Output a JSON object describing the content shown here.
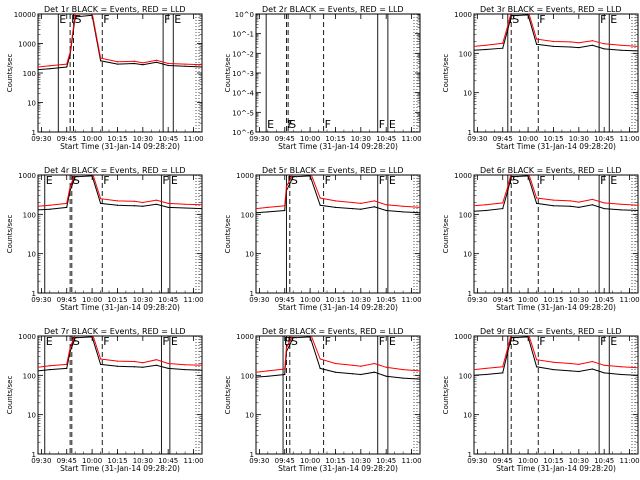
{
  "figure": {
    "xlabel": "Start Time (31-Jan-14 09:28:20)",
    "ylabel": "Counts/sec",
    "x_ticks": [
      "09:30",
      "09:45",
      "10:00",
      "10:15",
      "10:30",
      "10:45",
      "11:00"
    ],
    "y_ticks_main": [
      "1",
      "10",
      "100",
      "1000"
    ],
    "y_ticks_det1": [
      "1",
      "10",
      "100",
      "1000",
      "10000"
    ],
    "y_ticks_det2": [
      "10^-6",
      "10^-5",
      "10^-4",
      "10^-3",
      "10^-2",
      "10^-1",
      "10^0"
    ],
    "colors": {
      "events": "#000000",
      "lld": "#ff0000",
      "background": "#ffffff"
    }
  },
  "chart_data": [
    {
      "type": "line",
      "panel": 1,
      "title": "Det 1r BLACK = Events, RED = LLD",
      "yscale": "log",
      "ylim": [
        1,
        10000
      ],
      "markers": [
        {
          "label": "E",
          "time": "09:40"
        },
        {
          "label": "F",
          "time": "09:47"
        },
        {
          "label": "S",
          "time": "09:49"
        },
        {
          "label": "F",
          "time": "10:06"
        },
        {
          "label": "F",
          "time": "10:42"
        },
        {
          "label": "E",
          "time": "10:48"
        }
      ],
      "series": [
        {
          "name": "Events",
          "x": [
            "09:28",
            "09:35",
            "09:45",
            "09:47",
            "09:50",
            "10:00",
            "10:05",
            "10:15",
            "10:25",
            "10:30",
            "10:38",
            "10:45",
            "10:55",
            "11:05"
          ],
          "y": [
            130,
            140,
            160,
            400,
            8000,
            9000,
            260,
            200,
            210,
            190,
            230,
            180,
            170,
            160
          ]
        },
        {
          "name": "LLD",
          "x": [
            "09:28",
            "09:35",
            "09:45",
            "09:47",
            "09:50",
            "10:00",
            "10:05",
            "10:15",
            "10:25",
            "10:30",
            "10:38",
            "10:45",
            "10:55",
            "11:05"
          ],
          "y": [
            160,
            175,
            200,
            500,
            10000,
            11000,
            320,
            240,
            250,
            220,
            270,
            210,
            200,
            190
          ]
        }
      ]
    },
    {
      "type": "line",
      "panel": 2,
      "title": "Det 2r BLACK = Events, RED = LLD",
      "yscale": "log",
      "ylim": [
        1e-06,
        1
      ],
      "markers": [
        {
          "label": "E",
          "time": "09:34"
        },
        {
          "label": "F",
          "time": "09:46"
        },
        {
          "label": "S",
          "time": "09:47"
        },
        {
          "label": "F",
          "time": "10:08"
        },
        {
          "label": "F",
          "time": "10:40"
        },
        {
          "label": "E",
          "time": "10:46"
        }
      ],
      "series": []
    },
    {
      "type": "line",
      "panel": 3,
      "title": "Det 3r BLACK = Events, RED = LLD",
      "yscale": "log",
      "ylim": [
        1,
        1000
      ],
      "markers": [
        {
          "label": "F",
          "time": "09:48"
        },
        {
          "label": "S",
          "time": "09:50"
        },
        {
          "label": "F",
          "time": "10:06"
        },
        {
          "label": "F",
          "time": "10:42"
        },
        {
          "label": "E",
          "time": "10:48"
        }
      ],
      "series": [
        {
          "name": "Events",
          "x": [
            "09:28",
            "09:35",
            "09:45",
            "09:48",
            "09:50",
            "10:00",
            "10:05",
            "10:15",
            "10:25",
            "10:30",
            "10:38",
            "10:45",
            "10:55",
            "11:05"
          ],
          "y": [
            120,
            125,
            135,
            400,
            900,
            950,
            170,
            150,
            145,
            140,
            160,
            130,
            120,
            115
          ]
        },
        {
          "name": "LLD",
          "x": [
            "09:28",
            "09:35",
            "09:45",
            "09:48",
            "09:50",
            "10:00",
            "10:05",
            "10:15",
            "10:25",
            "10:30",
            "10:38",
            "10:45",
            "10:55",
            "11:05"
          ],
          "y": [
            150,
            160,
            180,
            500,
            1100,
            1200,
            230,
            200,
            195,
            185,
            210,
            175,
            160,
            150
          ]
        }
      ]
    },
    {
      "type": "line",
      "panel": 4,
      "title": "Det 4r BLACK = Events, RED = LLD",
      "yscale": "log",
      "ylim": [
        1,
        1000
      ],
      "markers": [
        {
          "label": "E",
          "time": "09:32"
        },
        {
          "label": "F",
          "time": "09:47"
        },
        {
          "label": "S",
          "time": "09:48"
        },
        {
          "label": "F",
          "time": "10:06"
        },
        {
          "label": "F",
          "time": "10:41"
        },
        {
          "label": "E",
          "time": "10:46"
        }
      ],
      "series": [
        {
          "name": "Events",
          "x": [
            "09:28",
            "09:35",
            "09:45",
            "09:47",
            "09:50",
            "10:00",
            "10:05",
            "10:15",
            "10:25",
            "10:30",
            "10:38",
            "10:45",
            "10:55",
            "11:05"
          ],
          "y": [
            130,
            135,
            150,
            400,
            900,
            950,
            190,
            170,
            165,
            160,
            180,
            150,
            145,
            140
          ]
        },
        {
          "name": "LLD",
          "x": [
            "09:28",
            "09:35",
            "09:45",
            "09:47",
            "09:50",
            "10:00",
            "10:05",
            "10:15",
            "10:25",
            "10:30",
            "10:38",
            "10:45",
            "10:55",
            "11:05"
          ],
          "y": [
            160,
            170,
            190,
            500,
            1100,
            1200,
            250,
            220,
            215,
            200,
            230,
            190,
            180,
            175
          ]
        }
      ]
    },
    {
      "type": "line",
      "panel": 5,
      "title": "Det 5r BLACK = Events, RED = LLD",
      "yscale": "log",
      "ylim": [
        1,
        1000
      ],
      "markers": [
        {
          "label": "F",
          "time": "09:46"
        },
        {
          "label": "S",
          "time": "09:48"
        },
        {
          "label": "F",
          "time": "10:08"
        },
        {
          "label": "F",
          "time": "10:40"
        },
        {
          "label": "E",
          "time": "10:46"
        }
      ],
      "series": [
        {
          "name": "Events",
          "x": [
            "09:28",
            "09:35",
            "09:45",
            "09:46",
            "09:50",
            "10:00",
            "10:06",
            "10:15",
            "10:25",
            "10:30",
            "10:38",
            "10:45",
            "10:55",
            "11:05"
          ],
          "y": [
            110,
            115,
            125,
            400,
            900,
            950,
            170,
            150,
            140,
            135,
            155,
            125,
            115,
            110
          ]
        },
        {
          "name": "LLD",
          "x": [
            "09:28",
            "09:35",
            "09:45",
            "09:46",
            "09:50",
            "10:00",
            "10:06",
            "10:15",
            "10:25",
            "10:30",
            "10:38",
            "10:45",
            "10:55",
            "11:05"
          ],
          "y": [
            140,
            150,
            165,
            500,
            1100,
            1200,
            260,
            220,
            200,
            190,
            220,
            175,
            160,
            150
          ]
        }
      ]
    },
    {
      "type": "line",
      "panel": 6,
      "title": "Det 6r BLACK = Events, RED = LLD",
      "yscale": "log",
      "ylim": [
        1,
        1000
      ],
      "markers": [
        {
          "label": "F",
          "time": "09:48"
        },
        {
          "label": "S",
          "time": "09:50"
        },
        {
          "label": "F",
          "time": "10:06"
        },
        {
          "label": "F",
          "time": "10:42"
        },
        {
          "label": "E",
          "time": "10:48"
        }
      ],
      "series": [
        {
          "name": "Events",
          "x": [
            "09:28",
            "09:35",
            "09:45",
            "09:48",
            "09:50",
            "10:00",
            "10:05",
            "10:15",
            "10:25",
            "10:30",
            "10:38",
            "10:45",
            "10:55",
            "11:05"
          ],
          "y": [
            120,
            125,
            140,
            400,
            900,
            950,
            190,
            165,
            160,
            150,
            175,
            140,
            130,
            125
          ]
        },
        {
          "name": "LLD",
          "x": [
            "09:28",
            "09:35",
            "09:45",
            "09:48",
            "09:50",
            "10:00",
            "10:05",
            "10:15",
            "10:25",
            "10:30",
            "10:38",
            "10:45",
            "10:55",
            "11:05"
          ],
          "y": [
            165,
            175,
            195,
            500,
            1100,
            1200,
            260,
            230,
            220,
            205,
            240,
            195,
            180,
            170
          ]
        }
      ]
    },
    {
      "type": "line",
      "panel": 7,
      "title": "Det 7r BLACK = Events, RED = LLD",
      "yscale": "log",
      "ylim": [
        1,
        1000
      ],
      "markers": [
        {
          "label": "E",
          "time": "09:32"
        },
        {
          "label": "F",
          "time": "09:47"
        },
        {
          "label": "S",
          "time": "09:48"
        },
        {
          "label": "F",
          "time": "10:06"
        },
        {
          "label": "F",
          "time": "10:41"
        },
        {
          "label": "E",
          "time": "10:46"
        }
      ],
      "series": [
        {
          "name": "Events",
          "x": [
            "09:28",
            "09:35",
            "09:45",
            "09:47",
            "09:50",
            "10:00",
            "10:05",
            "10:15",
            "10:25",
            "10:30",
            "10:38",
            "10:45",
            "10:55",
            "11:05"
          ],
          "y": [
            130,
            140,
            150,
            400,
            900,
            950,
            190,
            170,
            165,
            160,
            180,
            150,
            140,
            135
          ]
        },
        {
          "name": "LLD",
          "x": [
            "09:28",
            "09:35",
            "09:45",
            "09:47",
            "09:50",
            "10:00",
            "10:05",
            "10:15",
            "10:25",
            "10:30",
            "10:38",
            "10:45",
            "10:55",
            "11:05"
          ],
          "y": [
            160,
            175,
            190,
            500,
            1100,
            1200,
            260,
            230,
            225,
            210,
            250,
            200,
            185,
            180
          ]
        }
      ]
    },
    {
      "type": "line",
      "panel": 8,
      "title": "Det 8r BLACK = Events, RED = LLD",
      "yscale": "log",
      "ylim": [
        1,
        1000
      ],
      "markers": [
        {
          "label": "E",
          "time": "09:44"
        },
        {
          "label": "F",
          "time": "09:46"
        },
        {
          "label": "S",
          "time": "09:48"
        },
        {
          "label": "F",
          "time": "10:08"
        },
        {
          "label": "F",
          "time": "10:40"
        },
        {
          "label": "E",
          "time": "10:46"
        }
      ],
      "series": [
        {
          "name": "Events",
          "x": [
            "09:28",
            "09:35",
            "09:45",
            "09:46",
            "09:50",
            "10:00",
            "10:06",
            "10:15",
            "10:25",
            "10:30",
            "10:38",
            "10:45",
            "10:55",
            "11:05"
          ],
          "y": [
            90,
            95,
            105,
            400,
            900,
            950,
            150,
            120,
            110,
            105,
            120,
            95,
            85,
            80
          ]
        },
        {
          "name": "LLD",
          "x": [
            "09:28",
            "09:35",
            "09:45",
            "09:46",
            "09:50",
            "10:00",
            "10:06",
            "10:15",
            "10:25",
            "10:30",
            "10:38",
            "10:45",
            "10:55",
            "11:05"
          ],
          "y": [
            120,
            130,
            145,
            500,
            1100,
            1200,
            260,
            200,
            180,
            170,
            200,
            160,
            140,
            130
          ]
        }
      ]
    },
    {
      "type": "line",
      "panel": 9,
      "title": "Det 9r BLACK = Events, RED = LLD",
      "yscale": "log",
      "ylim": [
        1,
        1000
      ],
      "markers": [
        {
          "label": "F",
          "time": "09:48"
        },
        {
          "label": "S",
          "time": "09:50"
        },
        {
          "label": "F",
          "time": "10:06"
        },
        {
          "label": "F",
          "time": "10:42"
        },
        {
          "label": "E",
          "time": "10:48"
        }
      ],
      "series": [
        {
          "name": "Events",
          "x": [
            "09:28",
            "09:35",
            "09:45",
            "09:48",
            "09:50",
            "10:00",
            "10:05",
            "10:15",
            "10:25",
            "10:30",
            "10:38",
            "10:45",
            "10:55",
            "11:05"
          ],
          "y": [
            100,
            105,
            115,
            400,
            900,
            950,
            165,
            140,
            130,
            125,
            145,
            115,
            105,
            100
          ]
        },
        {
          "name": "LLD",
          "x": [
            "09:28",
            "09:35",
            "09:45",
            "09:48",
            "09:50",
            "10:00",
            "10:05",
            "10:15",
            "10:25",
            "10:30",
            "10:38",
            "10:45",
            "10:55",
            "11:05"
          ],
          "y": [
            140,
            150,
            165,
            500,
            1100,
            1200,
            250,
            215,
            200,
            190,
            225,
            180,
            165,
            155
          ]
        }
      ]
    }
  ]
}
